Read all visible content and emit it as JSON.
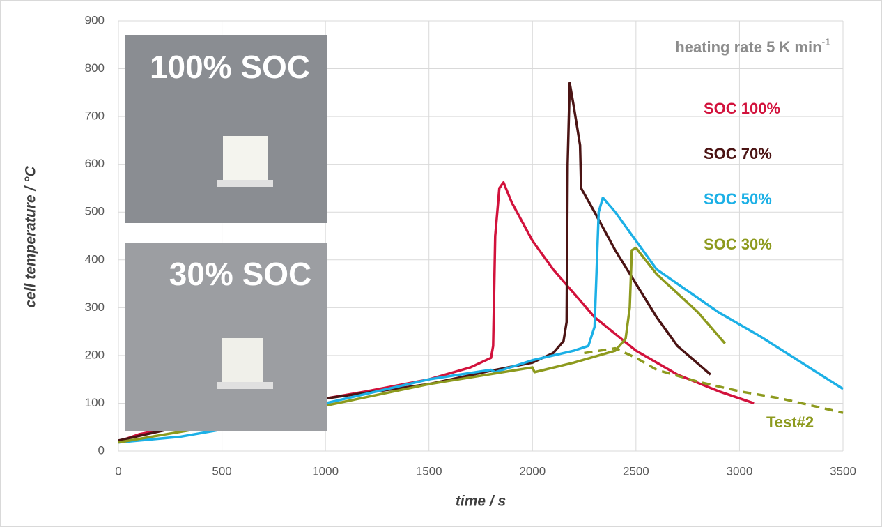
{
  "chart_data": {
    "type": "line",
    "xlabel": "time / s",
    "ylabel": "cell temperature / °C",
    "annotation": {
      "text": "heating rate 5 K min",
      "sup": "-1"
    },
    "insets": [
      "100% SOC",
      "30% SOC"
    ],
    "xlim": [
      0,
      3500
    ],
    "xticks": [
      0,
      500,
      1000,
      1500,
      2000,
      2500,
      3000,
      3500
    ],
    "ylim": [
      0,
      900
    ],
    "yticks": [
      0,
      100,
      200,
      300,
      400,
      500,
      600,
      700,
      800,
      900
    ],
    "grid": true,
    "series": [
      {
        "name": "SOC 100%",
        "color": "#d2123c",
        "dashed": false,
        "x": [
          0,
          100,
          500,
          1000,
          1200,
          1500,
          1700,
          1800,
          1810,
          1820,
          1840,
          1860,
          1900,
          2000,
          2100,
          2200,
          2300,
          2500,
          2700,
          2900,
          3070
        ],
        "values": [
          20,
          35,
          70,
          110,
          125,
          150,
          175,
          195,
          220,
          450,
          550,
          562,
          520,
          440,
          380,
          330,
          280,
          210,
          160,
          125,
          100
        ]
      },
      {
        "name": "SOC 70%",
        "color": "#4b1414",
        "dashed": false,
        "x": [
          0,
          500,
          1000,
          1500,
          1800,
          2000,
          2100,
          2150,
          2165,
          2170,
          2180,
          2200,
          2230,
          2235,
          2300,
          2400,
          2500,
          2600,
          2700,
          2860
        ],
        "values": [
          22,
          70,
          110,
          140,
          168,
          185,
          205,
          230,
          270,
          600,
          770,
          720,
          640,
          550,
          500,
          420,
          350,
          280,
          220,
          160
        ]
      },
      {
        "name": "SOC 50%",
        "color": "#1cb0e6",
        "dashed": false,
        "x": [
          0,
          300,
          500,
          1000,
          1500,
          1800,
          1820,
          2000,
          2200,
          2270,
          2300,
          2320,
          2340,
          2400,
          2500,
          2600,
          2700,
          2900,
          3100,
          3300,
          3500
        ],
        "values": [
          18,
          30,
          45,
          100,
          150,
          170,
          165,
          190,
          210,
          220,
          260,
          500,
          530,
          500,
          440,
          380,
          350,
          290,
          240,
          185,
          130
        ]
      },
      {
        "name": "SOC 30%",
        "color": "#8d9a1e",
        "dashed": false,
        "x": [
          0,
          500,
          1000,
          1500,
          2000,
          2010,
          2200,
          2400,
          2450,
          2470,
          2480,
          2500,
          2600,
          2700,
          2800,
          2930
        ],
        "values": [
          18,
          55,
          95,
          140,
          175,
          165,
          185,
          210,
          235,
          300,
          420,
          425,
          370,
          330,
          290,
          225
        ]
      },
      {
        "name": "Test#2",
        "color": "#8d9a1e",
        "dashed": true,
        "x": [
          2250,
          2400,
          2500,
          2600,
          2800,
          3000,
          3200,
          3500
        ],
        "values": [
          205,
          215,
          195,
          170,
          145,
          125,
          110,
          80
        ]
      }
    ]
  }
}
